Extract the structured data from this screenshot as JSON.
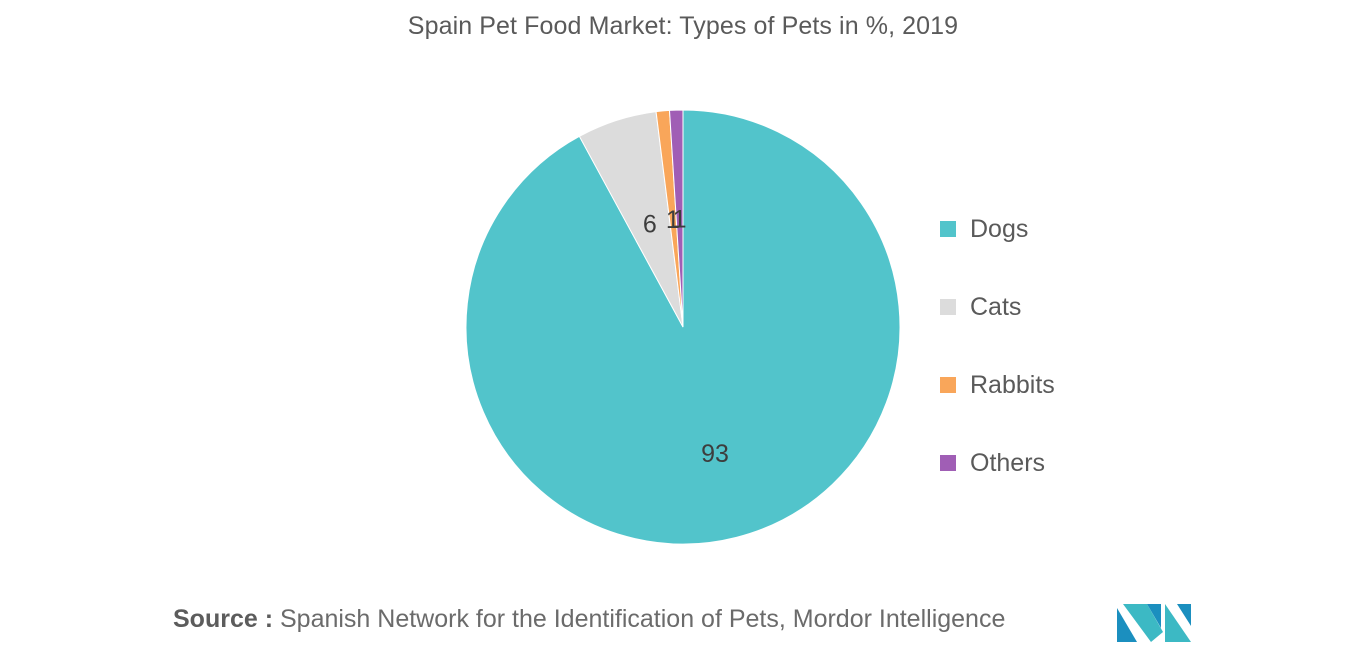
{
  "chart_data": {
    "type": "pie",
    "title": "Spain Pet Food Market: Types of Pets in %, 2019",
    "slices": [
      {
        "label": "Dogs",
        "value": 93,
        "data_label": "93",
        "color": "#52C4CB"
      },
      {
        "label": "Cats",
        "value": 6,
        "data_label": "6",
        "color": "#DCDCDC"
      },
      {
        "label": "Rabbits",
        "value": 1,
        "data_label": "1",
        "color": "#F9A65A"
      },
      {
        "label": "Others",
        "value": 1,
        "data_label": "1",
        "color": "#A05EB5"
      }
    ],
    "legend_position": "right",
    "start_angle_deg": 0,
    "direction": "clockwise"
  },
  "source": {
    "prefix": "Source :",
    "text": "Spanish Network for the Identification of Pets, Mordor Intelligence"
  },
  "logo": {
    "icon": "mordor-intelligence-logo-icon",
    "colors": [
      "#1B8FBF",
      "#3CB9C4"
    ]
  }
}
